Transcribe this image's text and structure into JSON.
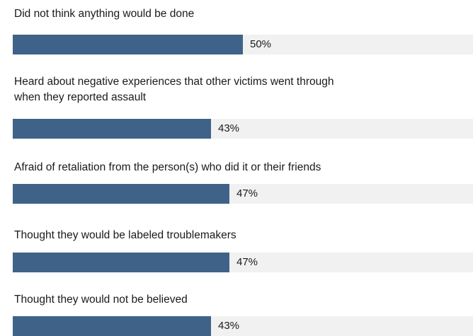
{
  "colors": {
    "bar": "#3f6388",
    "track": "#f1f1f1"
  },
  "chart_data": {
    "type": "bar",
    "orientation": "horizontal",
    "title": "",
    "xlabel": "",
    "ylabel": "",
    "xlim": [
      0,
      100
    ],
    "grid": false,
    "legend": "none",
    "categories": [
      "Did not think anything would be done",
      "Heard about negative experiences that other victims went through\nwhen they reported assault",
      "Afraid of retaliation from the person(s) who did it or their friends",
      "Thought they would be labeled troublemakers",
      "Thought they would not be believed"
    ],
    "values": [
      50,
      43,
      47,
      47,
      43
    ],
    "value_labels": [
      "50%",
      "43%",
      "47%",
      "47%",
      "43%"
    ]
  }
}
